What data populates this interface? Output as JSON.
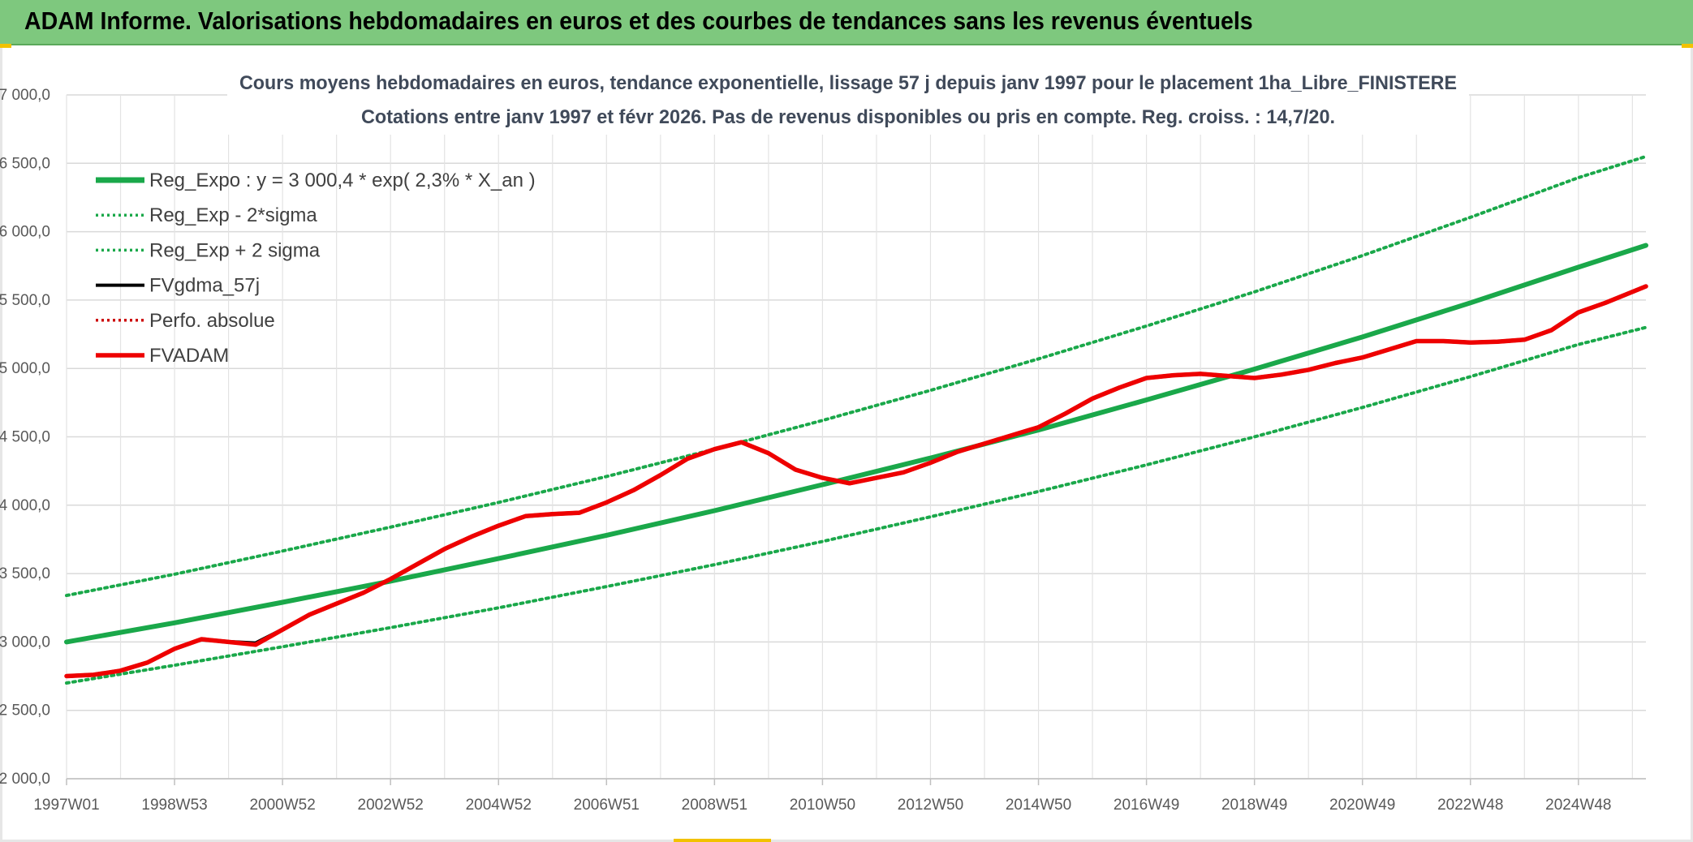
{
  "banner": {
    "title": "ADAM Informe. Valorisations hebdomadaires en euros et des courbes de tendances sans les revenus éventuels"
  },
  "colors": {
    "banner_bg": "#7ec87e",
    "green": "#1aa84a",
    "red": "#ee0000",
    "black": "#000000",
    "grid": "#d9d9d9"
  },
  "chart_data": {
    "type": "line",
    "title": "Cours moyens hebdomadaires en euros, tendance exponentielle, lissage 57 j depuis janv 1997 pour le placement 1ha_Libre_FINISTERE",
    "subtitle": "Cotations entre janv 1997 et févr 2026. Pas de revenus disponibles ou pris en compte. Reg. croiss. : 14,7/20.",
    "xlabel": "",
    "ylabel": "",
    "ylim": [
      2000,
      7000
    ],
    "xlim": [
      1997.0,
      2026.25
    ],
    "y_ticks": [
      "2 000,0",
      "2 500,0",
      "3 000,0",
      "3 500,0",
      "4 000,0",
      "4 500,0",
      "5 000,0",
      "5 500,0",
      "6 000,0",
      "6 500,0",
      "7 000,0"
    ],
    "y_tick_values": [
      2000,
      2500,
      3000,
      3500,
      4000,
      4500,
      5000,
      5500,
      6000,
      6500,
      7000
    ],
    "x_ticks": [
      "1997W01",
      "1998W53",
      "2000W52",
      "2002W52",
      "2004W52",
      "2006W51",
      "2008W51",
      "2010W50",
      "2012W50",
      "2014W50",
      "2016W49",
      "2018W49",
      "2020W49",
      "2022W48",
      "2024W48"
    ],
    "x_tick_values": [
      1997.0,
      1999.0,
      2001.0,
      2003.0,
      2005.0,
      2007.0,
      2009.0,
      2011.0,
      2013.0,
      2015.0,
      2017.0,
      2019.0,
      2021.0,
      2023.0,
      2025.0
    ],
    "grid": true,
    "legend_position": "top-left",
    "series": [
      {
        "name": "Reg_Expo : y = 3 000,4 * exp( 2,3% *  X_an )",
        "color": "#1aa84a",
        "style": "solid",
        "x": [
          1997,
          1999,
          2001,
          2003,
          2005,
          2007,
          2009,
          2011,
          2013,
          2015,
          2017,
          2019,
          2021,
          2023,
          2025,
          2026.25
        ],
        "y": [
          3000,
          3140,
          3290,
          3445,
          3610,
          3780,
          3960,
          4150,
          4345,
          4550,
          4770,
          4995,
          5230,
          5480,
          5740,
          5900
        ]
      },
      {
        "name": "Reg_Exp - 2*sigma",
        "color": "#1aa84a",
        "style": "dotted",
        "x": [
          1997,
          1999,
          2001,
          2003,
          2005,
          2007,
          2009,
          2011,
          2013,
          2015,
          2017,
          2019,
          2021,
          2023,
          2025,
          2026.25
        ],
        "y": [
          2700,
          2830,
          2965,
          3105,
          3250,
          3405,
          3565,
          3735,
          3915,
          4100,
          4295,
          4500,
          4715,
          4940,
          5175,
          5300
        ]
      },
      {
        "name": "Reg_Exp + 2 sigma",
        "color": "#1aa84a",
        "style": "dotted",
        "x": [
          1997,
          1999,
          2001,
          2003,
          2005,
          2007,
          2009,
          2011,
          2013,
          2015,
          2017,
          2019,
          2021,
          2023,
          2025,
          2026.25
        ],
        "y": [
          3340,
          3495,
          3665,
          3840,
          4020,
          4210,
          4410,
          4620,
          4840,
          5070,
          5310,
          5560,
          5825,
          6105,
          6395,
          6550
        ]
      },
      {
        "name": "FVgdma_57j",
        "color": "#000000",
        "style": "solid",
        "x": [
          1997,
          1997.5,
          1998,
          1998.5,
          1999,
          1999.5,
          2000,
          2000.5,
          2001,
          2001.5,
          2002,
          2002.5,
          2003,
          2003.5,
          2004,
          2004.5,
          2005,
          2005.5,
          2006,
          2006.5,
          2007,
          2007.5,
          2008,
          2008.5,
          2009,
          2009.5,
          2010,
          2010.5,
          2011,
          2011.5,
          2012,
          2012.5,
          2013,
          2013.5,
          2014,
          2014.5,
          2015,
          2015.5,
          2016,
          2016.5,
          2017,
          2017.5,
          2018,
          2018.5,
          2019,
          2019.5,
          2020,
          2020.5,
          2021,
          2021.5,
          2022,
          2022.5,
          2023,
          2023.5,
          2024,
          2024.5,
          2025,
          2025.5,
          2026.25
        ],
        "y": [
          2750,
          2760,
          2790,
          2850,
          2950,
          3020,
          3000,
          2990,
          3090,
          3200,
          3280,
          3360,
          3460,
          3570,
          3680,
          3770,
          3850,
          3920,
          3935,
          3945,
          4020,
          4110,
          4220,
          4340,
          4410,
          4460,
          4380,
          4260,
          4200,
          4160,
          4200,
          4240,
          4310,
          4390,
          4450,
          4510,
          4570,
          4670,
          4780,
          4860,
          4930,
          4950,
          4960,
          4945,
          4930,
          4955,
          4990,
          5040,
          5080,
          5140,
          5200,
          5200,
          5190,
          5195,
          5210,
          5280,
          5410,
          5480,
          5600
        ]
      },
      {
        "name": "Perfo. absolue",
        "color": "#cc0000",
        "style": "dotted",
        "x": [],
        "y": []
      },
      {
        "name": "FVADAM",
        "color": "#ee0000",
        "style": "solid",
        "x": [
          1997,
          1997.5,
          1998,
          1998.5,
          1999,
          1999.5,
          2000,
          2000.5,
          2001,
          2001.5,
          2002,
          2002.5,
          2003,
          2003.5,
          2004,
          2004.5,
          2005,
          2005.5,
          2006,
          2006.5,
          2007,
          2007.5,
          2008,
          2008.5,
          2009,
          2009.5,
          2010,
          2010.5,
          2011,
          2011.5,
          2012,
          2012.5,
          2013,
          2013.5,
          2014,
          2014.5,
          2015,
          2015.5,
          2016,
          2016.5,
          2017,
          2017.5,
          2018,
          2018.5,
          2019,
          2019.5,
          2020,
          2020.5,
          2021,
          2021.5,
          2022,
          2022.5,
          2023,
          2023.5,
          2024,
          2024.5,
          2025,
          2025.5,
          2026.25
        ],
        "y": [
          2750,
          2760,
          2790,
          2850,
          2950,
          3020,
          3000,
          2980,
          3090,
          3200,
          3280,
          3360,
          3460,
          3570,
          3680,
          3770,
          3850,
          3920,
          3935,
          3945,
          4020,
          4110,
          4220,
          4340,
          4410,
          4460,
          4380,
          4260,
          4200,
          4160,
          4200,
          4240,
          4310,
          4390,
          4450,
          4510,
          4570,
          4670,
          4780,
          4860,
          4930,
          4950,
          4960,
          4945,
          4930,
          4955,
          4990,
          5040,
          5080,
          5140,
          5200,
          5200,
          5190,
          5195,
          5210,
          5280,
          5410,
          5480,
          5600
        ]
      }
    ]
  }
}
